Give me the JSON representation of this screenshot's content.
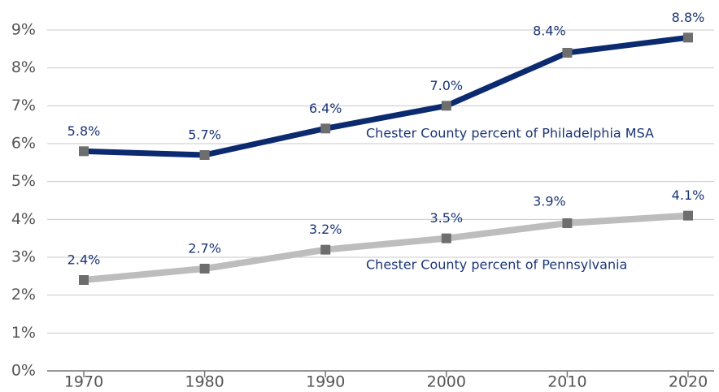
{
  "chart_data": {
    "type": "line",
    "categories": [
      "1970",
      "1980",
      "1990",
      "2000",
      "2010",
      "2020"
    ],
    "series": [
      {
        "name": "Chester County percent of Philadelphia MSA",
        "color": "#0b2a6f",
        "marker_color": "#6e6e6e",
        "values": [
          5.8,
          5.7,
          6.4,
          7.0,
          8.4,
          8.8
        ],
        "value_labels": [
          "5.8%",
          "5.7%",
          "6.4%",
          "7.0%",
          "8.4%",
          "8.8%"
        ]
      },
      {
        "name": "Chester County percent of Pennsylvania",
        "color": "#bdbdbd",
        "marker_color": "#6e6e6e",
        "values": [
          2.4,
          2.7,
          3.2,
          3.5,
          3.9,
          4.1
        ],
        "value_labels": [
          "2.4%",
          "2.7%",
          "3.2%",
          "3.5%",
          "3.9%",
          "4.1%"
        ]
      }
    ],
    "ylim": [
      0,
      9
    ],
    "yticks": [
      {
        "value": 0,
        "label": "0%"
      },
      {
        "value": 1,
        "label": "1%"
      },
      {
        "value": 2,
        "label": "2%"
      },
      {
        "value": 3,
        "label": "3%"
      },
      {
        "value": 4,
        "label": "4%"
      },
      {
        "value": 5,
        "label": "5%"
      },
      {
        "value": 6,
        "label": "6%"
      },
      {
        "value": 7,
        "label": "7%"
      },
      {
        "value": 8,
        "label": "8%"
      },
      {
        "value": 9,
        "label": "9%"
      }
    ],
    "grid": true
  }
}
